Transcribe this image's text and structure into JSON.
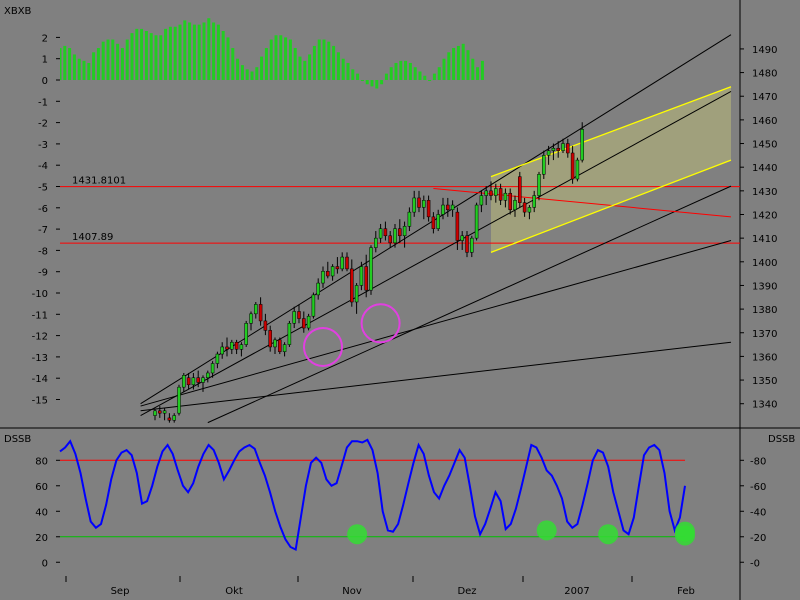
{
  "chart_data": [
    {
      "panel": "price",
      "type": "candlestick",
      "right_axis": {
        "ticks": [
          1340,
          1350,
          1360,
          1370,
          1380,
          1390,
          1400,
          1410,
          1420,
          1430,
          1440,
          1450,
          1460,
          1470,
          1480,
          1490
        ],
        "range": [
          1331,
          1498
        ]
      },
      "left_axis": {
        "label": "XBXB",
        "ticks": [
          2,
          1,
          0,
          -1,
          -2,
          -3,
          -4,
          -5,
          -6,
          -7,
          -8,
          -9,
          -10,
          -11,
          -12,
          -13,
          -14,
          -15
        ]
      },
      "horizontal_lines": [
        {
          "label": "1431.8101",
          "value": 1431.8,
          "color": "#ff0000"
        },
        {
          "label": "1407.89",
          "value": 1407.9,
          "color": "#ff0000"
        }
      ],
      "candles": [
        {
          "o": 1335,
          "h": 1338,
          "l": 1333,
          "c": 1337
        },
        {
          "o": 1337,
          "h": 1339,
          "l": 1334,
          "c": 1336
        },
        {
          "o": 1336,
          "h": 1338,
          "l": 1333,
          "c": 1337
        },
        {
          "o": 1334,
          "h": 1336,
          "l": 1332,
          "c": 1333
        },
        {
          "o": 1333,
          "h": 1336,
          "l": 1332,
          "c": 1335
        },
        {
          "o": 1336,
          "h": 1348,
          "l": 1335,
          "c": 1347
        },
        {
          "o": 1347,
          "h": 1353,
          "l": 1345,
          "c": 1352
        },
        {
          "o": 1351,
          "h": 1353,
          "l": 1346,
          "c": 1348
        },
        {
          "o": 1348,
          "h": 1353,
          "l": 1346,
          "c": 1351
        },
        {
          "o": 1351,
          "h": 1354,
          "l": 1347,
          "c": 1349
        },
        {
          "o": 1349,
          "h": 1352,
          "l": 1345,
          "c": 1351
        },
        {
          "o": 1351,
          "h": 1354,
          "l": 1349,
          "c": 1353
        },
        {
          "o": 1353,
          "h": 1358,
          "l": 1351,
          "c": 1357
        },
        {
          "o": 1357,
          "h": 1362,
          "l": 1355,
          "c": 1361
        },
        {
          "o": 1361,
          "h": 1366,
          "l": 1359,
          "c": 1364
        },
        {
          "o": 1364,
          "h": 1368,
          "l": 1360,
          "c": 1363
        },
        {
          "o": 1363,
          "h": 1367,
          "l": 1361,
          "c": 1366
        },
        {
          "o": 1366,
          "h": 1367,
          "l": 1361,
          "c": 1363
        },
        {
          "o": 1363,
          "h": 1366,
          "l": 1360,
          "c": 1365
        },
        {
          "o": 1365,
          "h": 1375,
          "l": 1364,
          "c": 1374
        },
        {
          "o": 1374,
          "h": 1379,
          "l": 1371,
          "c": 1378
        },
        {
          "o": 1378,
          "h": 1383,
          "l": 1376,
          "c": 1382
        },
        {
          "o": 1382,
          "h": 1385,
          "l": 1373,
          "c": 1375
        },
        {
          "o": 1375,
          "h": 1378,
          "l": 1369,
          "c": 1371
        },
        {
          "o": 1371,
          "h": 1373,
          "l": 1362,
          "c": 1364
        },
        {
          "o": 1364,
          "h": 1368,
          "l": 1361,
          "c": 1367
        },
        {
          "o": 1367,
          "h": 1368,
          "l": 1361,
          "c": 1362
        },
        {
          "o": 1362,
          "h": 1366,
          "l": 1360,
          "c": 1365
        },
        {
          "o": 1365,
          "h": 1375,
          "l": 1364,
          "c": 1374
        },
        {
          "o": 1374,
          "h": 1381,
          "l": 1372,
          "c": 1379
        },
        {
          "o": 1379,
          "h": 1382,
          "l": 1374,
          "c": 1376
        },
        {
          "o": 1376,
          "h": 1379,
          "l": 1370,
          "c": 1372
        },
        {
          "o": 1372,
          "h": 1378,
          "l": 1371,
          "c": 1377
        },
        {
          "o": 1377,
          "h": 1387,
          "l": 1376,
          "c": 1386
        },
        {
          "o": 1386,
          "h": 1393,
          "l": 1384,
          "c": 1391
        },
        {
          "o": 1391,
          "h": 1398,
          "l": 1389,
          "c": 1396
        },
        {
          "o": 1396,
          "h": 1400,
          "l": 1393,
          "c": 1394
        },
        {
          "o": 1394,
          "h": 1399,
          "l": 1392,
          "c": 1398
        },
        {
          "o": 1398,
          "h": 1402,
          "l": 1395,
          "c": 1397
        },
        {
          "o": 1397,
          "h": 1404,
          "l": 1396,
          "c": 1402
        },
        {
          "o": 1402,
          "h": 1404,
          "l": 1396,
          "c": 1397
        },
        {
          "o": 1397,
          "h": 1401,
          "l": 1381,
          "c": 1383
        },
        {
          "o": 1383,
          "h": 1391,
          "l": 1378,
          "c": 1390
        },
        {
          "o": 1390,
          "h": 1400,
          "l": 1388,
          "c": 1398
        },
        {
          "o": 1398,
          "h": 1403,
          "l": 1385,
          "c": 1388
        },
        {
          "o": 1388,
          "h": 1407,
          "l": 1386,
          "c": 1406
        },
        {
          "o": 1406,
          "h": 1413,
          "l": 1404,
          "c": 1410
        },
        {
          "o": 1410,
          "h": 1416,
          "l": 1408,
          "c": 1414
        },
        {
          "o": 1414,
          "h": 1417,
          "l": 1409,
          "c": 1411
        },
        {
          "o": 1411,
          "h": 1413,
          "l": 1406,
          "c": 1408
        },
        {
          "o": 1408,
          "h": 1416,
          "l": 1406,
          "c": 1414
        },
        {
          "o": 1414,
          "h": 1418,
          "l": 1408,
          "c": 1411
        },
        {
          "o": 1411,
          "h": 1417,
          "l": 1406,
          "c": 1415
        },
        {
          "o": 1415,
          "h": 1423,
          "l": 1413,
          "c": 1421
        },
        {
          "o": 1421,
          "h": 1430,
          "l": 1419,
          "c": 1427
        },
        {
          "o": 1427,
          "h": 1430,
          "l": 1421,
          "c": 1423
        },
        {
          "o": 1423,
          "h": 1428,
          "l": 1418,
          "c": 1426
        },
        {
          "o": 1426,
          "h": 1428,
          "l": 1417,
          "c": 1419
        },
        {
          "o": 1419,
          "h": 1421,
          "l": 1412,
          "c": 1414
        },
        {
          "o": 1414,
          "h": 1422,
          "l": 1413,
          "c": 1420
        },
        {
          "o": 1420,
          "h": 1427,
          "l": 1418,
          "c": 1424
        },
        {
          "o": 1424,
          "h": 1427,
          "l": 1419,
          "c": 1422
        },
        {
          "o": 1422,
          "h": 1426,
          "l": 1419,
          "c": 1424
        },
        {
          "o": 1421,
          "h": 1423,
          "l": 1405,
          "c": 1409
        },
        {
          "o": 1409,
          "h": 1413,
          "l": 1405,
          "c": 1411
        },
        {
          "o": 1411,
          "h": 1413,
          "l": 1402,
          "c": 1404
        },
        {
          "o": 1404,
          "h": 1411,
          "l": 1402,
          "c": 1410
        },
        {
          "o": 1410,
          "h": 1425,
          "l": 1409,
          "c": 1424
        },
        {
          "o": 1424,
          "h": 1430,
          "l": 1421,
          "c": 1428
        },
        {
          "o": 1428,
          "h": 1432,
          "l": 1424,
          "c": 1430
        },
        {
          "o": 1430,
          "h": 1434,
          "l": 1426,
          "c": 1428
        },
        {
          "o": 1428,
          "h": 1433,
          "l": 1425,
          "c": 1431
        },
        {
          "o": 1431,
          "h": 1433,
          "l": 1424,
          "c": 1426
        },
        {
          "o": 1426,
          "h": 1431,
          "l": 1423,
          "c": 1429
        },
        {
          "o": 1429,
          "h": 1431,
          "l": 1420,
          "c": 1422
        },
        {
          "o": 1422,
          "h": 1428,
          "l": 1419,
          "c": 1426
        },
        {
          "o": 1436,
          "h": 1438,
          "l": 1423,
          "c": 1425
        },
        {
          "o": 1425,
          "h": 1427,
          "l": 1419,
          "c": 1421
        },
        {
          "o": 1421,
          "h": 1424,
          "l": 1418,
          "c": 1423
        },
        {
          "o": 1423,
          "h": 1430,
          "l": 1421,
          "c": 1428
        },
        {
          "o": 1428,
          "h": 1438,
          "l": 1426,
          "c": 1437
        },
        {
          "o": 1437,
          "h": 1447,
          "l": 1435,
          "c": 1445
        },
        {
          "o": 1445,
          "h": 1449,
          "l": 1441,
          "c": 1447
        },
        {
          "o": 1447,
          "h": 1450,
          "l": 1443,
          "c": 1448
        },
        {
          "o": 1448,
          "h": 1451,
          "l": 1444,
          "c": 1447
        },
        {
          "o": 1447,
          "h": 1452,
          "l": 1446,
          "c": 1450
        },
        {
          "o": 1450,
          "h": 1452,
          "l": 1444,
          "c": 1446
        },
        {
          "o": 1446,
          "h": 1449,
          "l": 1433,
          "c": 1435
        },
        {
          "o": 1435,
          "h": 1444,
          "l": 1434,
          "c": 1443
        },
        {
          "o": 1443,
          "h": 1459,
          "l": 1442,
          "c": 1456
        }
      ],
      "oscillator_bars": [
        1.5,
        1.6,
        1.5,
        1.2,
        1.0,
        0.9,
        0.8,
        1.3,
        1.5,
        1.8,
        1.9,
        1.9,
        1.7,
        1.5,
        1.9,
        2.2,
        2.4,
        2.4,
        2.3,
        2.2,
        2.1,
        2.1,
        2.4,
        2.5,
        2.5,
        2.6,
        2.8,
        2.7,
        2.6,
        2.6,
        2.7,
        2.9,
        2.7,
        2.6,
        2.3,
        2.0,
        1.5,
        1.0,
        0.7,
        0.5,
        0.4,
        0.6,
        1.1,
        1.5,
        1.9,
        2.1,
        2.1,
        2.0,
        1.9,
        1.5,
        1.1,
        0.9,
        1.2,
        1.6,
        1.9,
        1.9,
        1.8,
        1.6,
        1.3,
        1.0,
        0.8,
        0.5,
        0.3,
        0.0,
        -0.2,
        -0.3,
        -0.4,
        -0.2,
        0.3,
        0.6,
        0.8,
        0.9,
        0.9,
        0.8,
        0.6,
        0.4,
        0.2,
        0.0,
        0.3,
        0.6,
        1.0,
        1.3,
        1.5,
        1.6,
        1.7,
        1.4,
        1.0,
        0.6,
        0.9
      ],
      "trendlines": [
        {
          "points": [
            [
              -3,
              1340
            ],
            [
              120,
              1496
            ]
          ],
          "color": "#000000"
        },
        {
          "points": [
            [
              -3,
              1335
            ],
            [
              120,
              1472
            ]
          ],
          "color": "#000000"
        },
        {
          "points": [
            [
              11,
              1332
            ],
            [
              120,
              1432
            ]
          ],
          "color": "#000000"
        },
        {
          "points": [
            [
              -3,
              1339
            ],
            [
              120,
              1409
            ]
          ],
          "color": "#000000"
        },
        {
          "points": [
            [
              -3,
              1337
            ],
            [
              120,
              1366
            ]
          ],
          "color": "#000000"
        },
        {
          "points": [
            [
              58,
              1431
            ],
            [
              120,
              1419
            ]
          ],
          "color": "#ff0000"
        }
      ],
      "channel": {
        "upper": [
          [
            70,
            1436
          ],
          [
            120,
            1474
          ]
        ],
        "lower": [
          [
            70,
            1404
          ],
          [
            120,
            1443
          ]
        ],
        "color": "#ffff00"
      },
      "circles": [
        {
          "x": 35,
          "y": 1364,
          "color": "#e040e0"
        },
        {
          "x": 47,
          "y": 1374,
          "color": "#e040e0"
        }
      ]
    },
    {
      "panel": "oscillator",
      "type": "line",
      "label_left": "DSSB",
      "label_right": "DSSB",
      "ylim": [
        -10,
        92
      ],
      "yticks": [
        0,
        20,
        40,
        60,
        80
      ],
      "hlines": [
        {
          "value": 80,
          "color": "#ff0000"
        },
        {
          "value": 20,
          "color": "#00c000"
        }
      ],
      "series": [
        {
          "values": [
            87,
            90,
            95,
            85,
            70,
            50,
            32,
            27,
            30,
            45,
            65,
            80,
            86,
            88,
            84,
            70,
            46,
            48,
            60,
            75,
            87,
            92,
            85,
            72,
            60,
            55,
            62,
            75,
            85,
            92,
            88,
            78,
            65,
            72,
            80,
            87,
            90,
            92,
            89,
            78,
            68,
            55,
            40,
            28,
            18,
            12,
            10,
            35,
            60,
            78,
            82,
            78,
            65,
            60,
            62,
            76,
            90,
            95,
            95,
            94,
            96,
            88,
            70,
            40,
            25,
            24,
            30,
            45,
            62,
            78,
            92,
            85,
            68,
            55,
            50,
            60,
            68,
            78,
            88,
            82,
            60,
            36,
            22,
            30,
            42,
            55,
            48,
            26,
            30,
            42,
            58,
            75,
            92,
            90,
            82,
            72,
            68,
            60,
            50,
            32,
            27,
            30,
            45,
            62,
            80,
            88,
            86,
            75,
            55,
            40,
            25,
            22,
            35,
            60,
            84,
            90,
            92,
            88,
            70,
            40,
            25,
            35,
            60
          ]
        }
      ],
      "markers": [
        {
          "index": 43,
          "value": 22
        },
        {
          "index": 70,
          "value": 25
        },
        {
          "index": 79,
          "value": 22
        },
        {
          "index": 97,
          "value": 21
        },
        {
          "index": 113,
          "value": 24
        }
      ],
      "x_labels": [
        "Sep",
        "Okt",
        "Nov",
        "Dez",
        "2007",
        "Feb"
      ]
    }
  ]
}
